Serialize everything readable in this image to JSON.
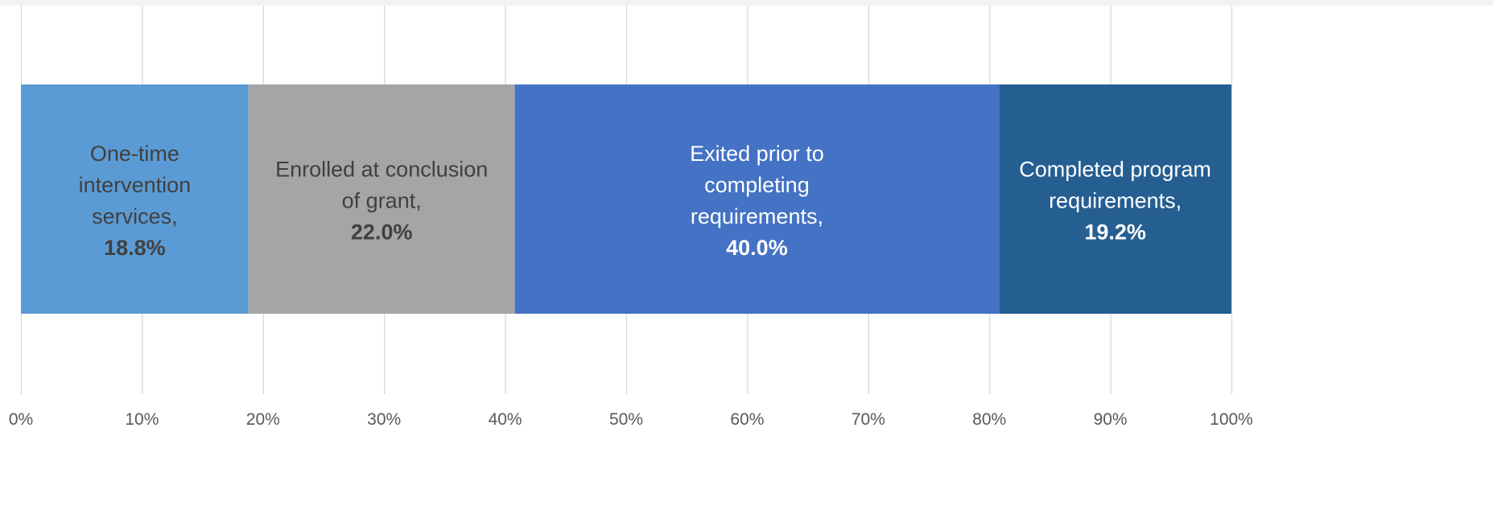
{
  "chart_data": {
    "type": "bar",
    "orientation": "horizontal",
    "stacked": true,
    "title": "",
    "xlabel": "",
    "ylabel": "",
    "xlim": [
      0,
      100
    ],
    "grid": true,
    "legend": "none",
    "x_ticks": [
      0,
      10,
      20,
      30,
      40,
      50,
      60,
      70,
      80,
      90,
      100
    ],
    "x_tick_labels": [
      "0%",
      "10%",
      "20%",
      "30%",
      "40%",
      "50%",
      "60%",
      "70%",
      "80%",
      "90%",
      "100%"
    ],
    "series": [
      {
        "name": "One-time intervention services",
        "value": 18.8,
        "label_lines": [
          "One-time",
          "intervention",
          "services,"
        ],
        "value_label": "18.8%",
        "color": "#5b9bd5",
        "text_color": "#404040"
      },
      {
        "name": "Enrolled at conclusion of grant",
        "value": 22.0,
        "label_lines": [
          "Enrolled at conclusion",
          "of grant,"
        ],
        "value_label": "22.0%",
        "color": "#a5a5a5",
        "text_color": "#404040"
      },
      {
        "name": "Exited prior to completing requirements",
        "value": 40.0,
        "label_lines": [
          "Exited prior to",
          "completing",
          "requirements,"
        ],
        "value_label": "40.0%",
        "color": "#4472c4",
        "text_color": "#ffffff"
      },
      {
        "name": "Completed program requirements",
        "value": 19.2,
        "label_lines": [
          "Completed program",
          "requirements,"
        ],
        "value_label": "19.2%",
        "color": "#255e91",
        "text_color": "#ffffff"
      }
    ],
    "colors": {
      "grid": "#d9d9d9",
      "axis_text": "#595959",
      "background": "#ffffff"
    }
  }
}
